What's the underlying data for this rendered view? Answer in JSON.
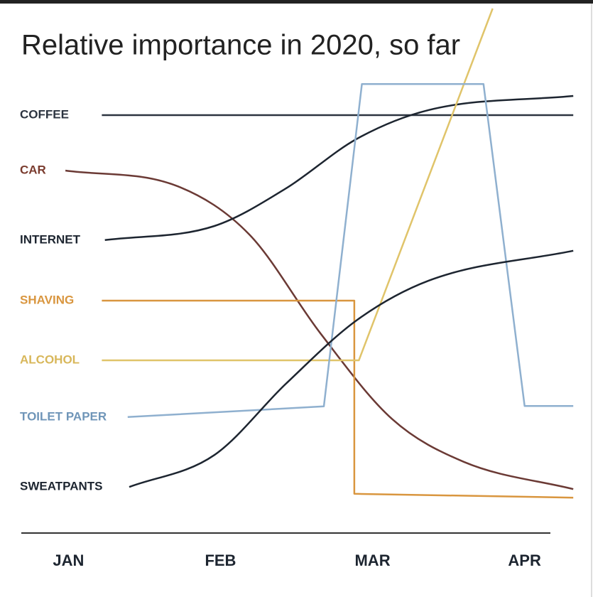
{
  "chart_data": {
    "type": "line",
    "title": "Relative importance in 2020, so far",
    "categories": [
      "JAN",
      "FEB",
      "MAR",
      "APR"
    ],
    "xlim": [
      -0.45,
      3.45
    ],
    "ylim": [
      0,
      120
    ],
    "series": [
      {
        "name": "COFFEE",
        "color": "#2c3440",
        "label_color": "#2c3440",
        "interpolation": "linear",
        "x": [
          0.22,
          3.32
        ],
        "values": [
          93,
          93
        ]
      },
      {
        "name": "CAR",
        "color": "#6b3a35",
        "label_color": "#7a3b2e",
        "interpolation": "monotone",
        "x": [
          -0.02,
          0.72,
          1.19,
          1.66,
          2.13,
          2.6,
          3.32
        ],
        "values": [
          80,
          76.3,
          65,
          41.7,
          21.7,
          11.7,
          5.3
        ]
      },
      {
        "name": "INTERNET",
        "color": "#1d2530",
        "label_color": "#1d2530",
        "interpolation": "monotone",
        "x": [
          0.24,
          0.96,
          1.43,
          1.9,
          2.37,
          3.32
        ],
        "values": [
          63.7,
          67,
          75.8,
          87.5,
          94.2,
          97.5
        ]
      },
      {
        "name": "SHAVING",
        "color": "#d9963f",
        "label_color": "#d9963f",
        "interpolation": "linear",
        "x": [
          0.22,
          1.88,
          1.88,
          3.32
        ],
        "values": [
          49.5,
          49.5,
          4.2,
          3.3
        ]
      },
      {
        "name": "ALCOHOL",
        "color": "#e0c46a",
        "label_color": "#d8b75a",
        "interpolation": "linear",
        "x": [
          0.22,
          1.91,
          2.79
        ],
        "values": [
          35.5,
          35.5,
          118
        ]
      },
      {
        "name": "TOILET PAPER",
        "color": "#8fb0cf",
        "label_color": "#6f95b8",
        "interpolation": "linear",
        "x": [
          0.39,
          1.68,
          1.93,
          2.73,
          3.0,
          3.32
        ],
        "values": [
          22.2,
          24.7,
          100.3,
          100.3,
          24.8,
          24.8
        ]
      },
      {
        "name": "SWEATPANTS",
        "color": "#1d2530",
        "label_color": "#1d2530",
        "interpolation": "monotone",
        "x": [
          0.4,
          0.96,
          1.43,
          1.9,
          2.37,
          3.32
        ],
        "values": [
          5.8,
          13.3,
          30,
          45,
          54.2,
          61.2
        ]
      }
    ]
  }
}
